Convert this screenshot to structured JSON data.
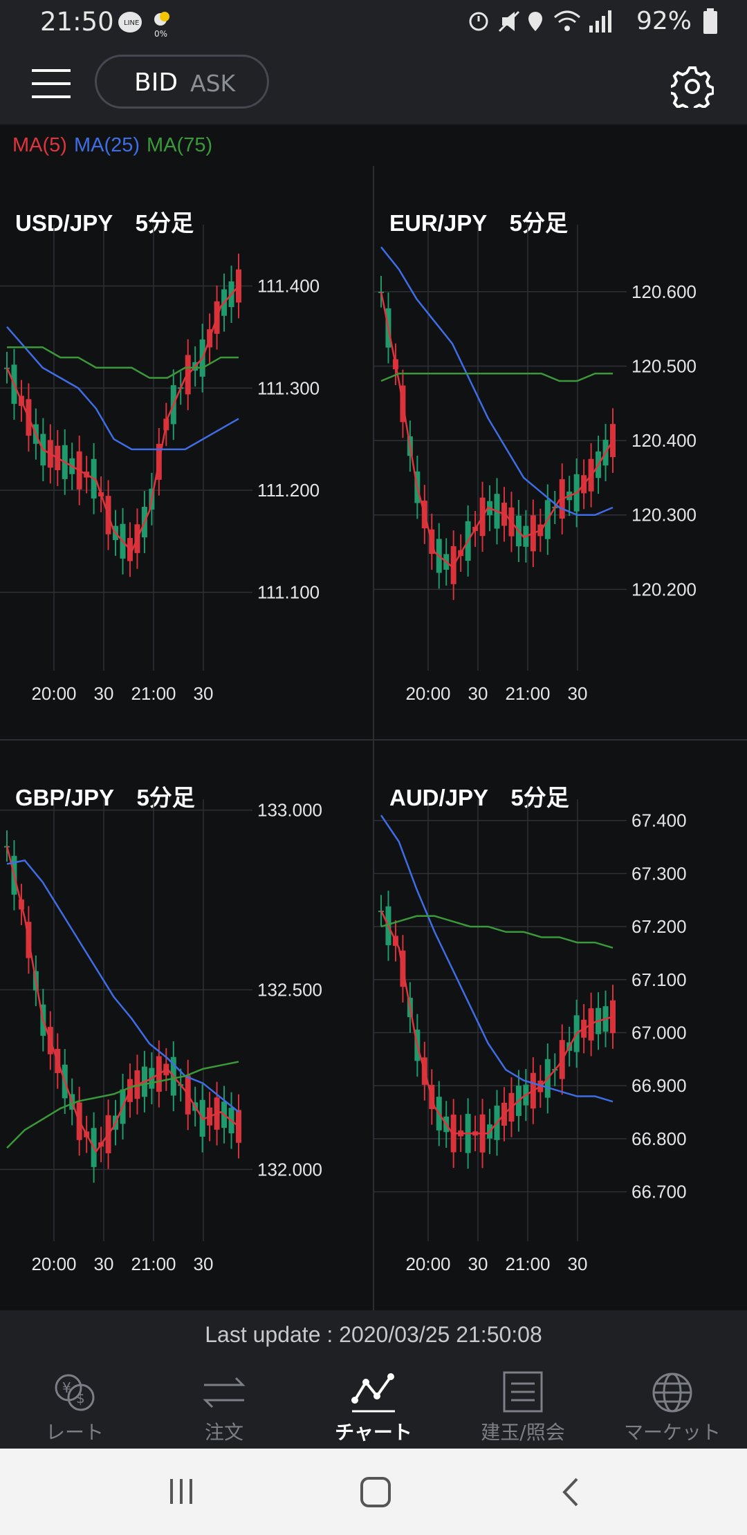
{
  "status": {
    "time": "21:50",
    "battery": "92%",
    "weather_pct": "0%"
  },
  "header": {
    "bid_label": "BID",
    "ask_label": "ASK"
  },
  "legend": [
    {
      "label": "MA(5)",
      "color": "#e0343d"
    },
    {
      "label": "MA(25)",
      "color": "#3e6ee6"
    },
    {
      "label": "MA(75)",
      "color": "#3a9a3a"
    }
  ],
  "charts": [
    {
      "pair_title": "USD/JPY　5分足",
      "x_ticks": [
        "20:00",
        "30",
        "21:00",
        "30"
      ],
      "y_ticks": [
        "111.400",
        "111.300",
        "111.200",
        "111.100"
      ],
      "y_min": 111.03,
      "y_max": 111.46
    },
    {
      "pair_title": "EUR/JPY　5分足",
      "x_ticks": [
        "20:00",
        "30",
        "21:00",
        "30"
      ],
      "y_ticks": [
        "120.600",
        "120.500",
        "120.400",
        "120.300",
        "120.200"
      ],
      "y_min": 120.1,
      "y_max": 120.69
    },
    {
      "pair_title": "GBP/JPY　5分足",
      "x_ticks": [
        "20:00",
        "30",
        "21:00",
        "30"
      ],
      "y_ticks": [
        "133.000",
        "132.500",
        "132.000"
      ],
      "y_min": 131.82,
      "y_max": 133.03
    },
    {
      "pair_title": "AUD/JPY　5分足",
      "x_ticks": [
        "20:00",
        "30",
        "21:00",
        "30"
      ],
      "y_ticks": [
        "67.400",
        "67.300",
        "67.200",
        "67.100",
        "67.000",
        "66.900",
        "66.800",
        "66.700"
      ],
      "y_min": 66.62,
      "y_max": 67.44
    }
  ],
  "chart_data": [
    {
      "type": "line",
      "x": [
        "19:35",
        "19:45",
        "19:55",
        "20:05",
        "20:15",
        "20:25",
        "20:35",
        "20:45",
        "20:55",
        "21:05",
        "21:15",
        "21:25",
        "21:35",
        "21:45"
      ],
      "series": [
        {
          "name": "MA(5)",
          "values": [
            111.32,
            111.28,
            111.24,
            111.23,
            111.22,
            111.21,
            111.16,
            111.14,
            111.18,
            111.27,
            111.31,
            111.33,
            111.38,
            111.4
          ]
        },
        {
          "name": "MA(25)",
          "values": [
            111.36,
            111.34,
            111.32,
            111.31,
            111.3,
            111.28,
            111.25,
            111.24,
            111.24,
            111.24,
            111.24,
            111.25,
            111.26,
            111.27
          ]
        },
        {
          "name": "MA(75)",
          "values": [
            111.34,
            111.34,
            111.34,
            111.33,
            111.33,
            111.32,
            111.32,
            111.32,
            111.31,
            111.31,
            111.32,
            111.32,
            111.33,
            111.33
          ]
        }
      ]
    },
    {
      "type": "line",
      "x": [
        "19:35",
        "19:45",
        "19:55",
        "20:05",
        "20:15",
        "20:25",
        "20:35",
        "20:45",
        "20:55",
        "21:05",
        "21:15",
        "21:25",
        "21:35",
        "21:45"
      ],
      "series": [
        {
          "name": "MA(5)",
          "values": [
            120.6,
            120.48,
            120.34,
            120.25,
            120.23,
            120.27,
            120.31,
            120.3,
            120.27,
            120.28,
            120.32,
            120.33,
            120.36,
            120.4
          ]
        },
        {
          "name": "MA(25)",
          "values": [
            120.66,
            120.63,
            120.59,
            120.56,
            120.53,
            120.48,
            120.43,
            120.39,
            120.35,
            120.33,
            120.31,
            120.3,
            120.3,
            120.31
          ]
        },
        {
          "name": "MA(75)",
          "values": [
            120.48,
            120.49,
            120.49,
            120.49,
            120.49,
            120.49,
            120.49,
            120.49,
            120.49,
            120.49,
            120.48,
            120.48,
            120.49,
            120.49
          ]
        }
      ]
    },
    {
      "type": "line",
      "x": [
        "19:35",
        "19:45",
        "19:55",
        "20:05",
        "20:15",
        "20:25",
        "20:35",
        "20:45",
        "20:55",
        "21:05",
        "21:15",
        "21:25",
        "21:35",
        "21:45"
      ],
      "series": [
        {
          "name": "MA(5)",
          "values": [
            132.9,
            132.7,
            132.42,
            132.28,
            132.14,
            132.05,
            132.12,
            132.23,
            132.25,
            132.28,
            132.22,
            132.14,
            132.16,
            132.12
          ]
        },
        {
          "name": "MA(25)",
          "values": [
            132.85,
            132.86,
            132.8,
            132.72,
            132.64,
            132.56,
            132.48,
            132.42,
            132.35,
            132.31,
            132.26,
            132.24,
            132.2,
            132.16
          ]
        },
        {
          "name": "MA(75)",
          "values": [
            132.06,
            132.11,
            132.14,
            132.17,
            132.19,
            132.2,
            132.21,
            132.23,
            132.24,
            132.25,
            132.26,
            132.28,
            132.29,
            132.3
          ]
        }
      ]
    },
    {
      "type": "line",
      "x": [
        "19:35",
        "19:45",
        "19:55",
        "20:05",
        "20:15",
        "20:25",
        "20:35",
        "20:45",
        "20:55",
        "21:05",
        "21:15",
        "21:25",
        "21:35",
        "21:45"
      ],
      "series": [
        {
          "name": "MA(5)",
          "values": [
            67.23,
            67.16,
            66.98,
            66.86,
            66.81,
            66.81,
            66.81,
            66.85,
            66.88,
            66.9,
            66.94,
            67.0,
            67.02,
            67.03
          ]
        },
        {
          "name": "MA(25)",
          "values": [
            67.41,
            67.36,
            67.27,
            67.19,
            67.12,
            67.05,
            66.98,
            66.93,
            66.91,
            66.9,
            66.89,
            66.88,
            66.88,
            66.87
          ]
        },
        {
          "name": "MA(75)",
          "values": [
            67.2,
            67.21,
            67.22,
            67.22,
            67.21,
            67.2,
            67.2,
            67.19,
            67.19,
            67.18,
            67.18,
            67.17,
            67.17,
            67.16
          ]
        }
      ]
    }
  ],
  "footer": {
    "last_update": "Last update : 2020/03/25 21:50:08"
  },
  "nav": [
    {
      "label": "レート",
      "icon": "rate-icon",
      "active": false
    },
    {
      "label": "注文",
      "icon": "order-icon",
      "active": false
    },
    {
      "label": "チャート",
      "icon": "chart-icon",
      "active": true
    },
    {
      "label": "建玉/照会",
      "icon": "positions-icon",
      "active": false
    },
    {
      "label": "マーケット",
      "icon": "market-icon",
      "active": false
    }
  ]
}
